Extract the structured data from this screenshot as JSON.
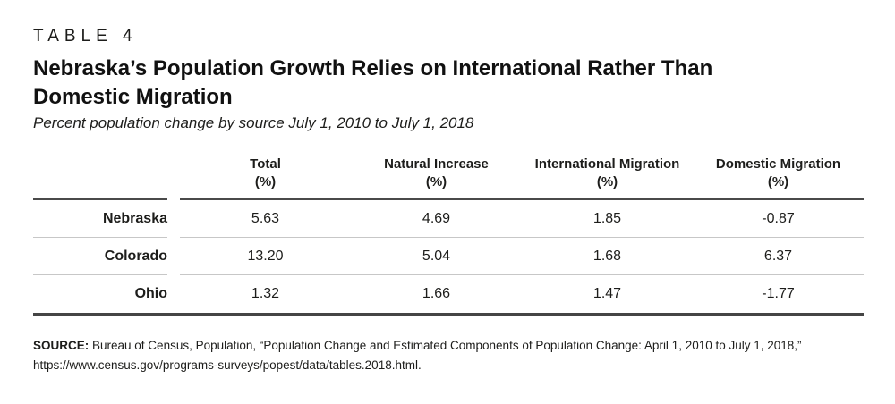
{
  "table_label": "TABLE 4",
  "title": {
    "line1": "Nebraska’s Population Growth Relies on International Rather Than",
    "line2": "Domestic Migration"
  },
  "subtitle": "Percent population change by source July 1, 2010 to July 1, 2018",
  "table": {
    "columns": [
      {
        "label": "Total",
        "unit": "(%)"
      },
      {
        "label": "Natural Increase",
        "unit": "(%)"
      },
      {
        "label": "International Migration",
        "unit": "(%)"
      },
      {
        "label": "Domestic Migration",
        "unit": "(%)"
      }
    ],
    "rows": [
      {
        "label": "Nebraska",
        "values": [
          "5.63",
          "4.69",
          "1.85",
          "-0.87"
        ]
      },
      {
        "label": "Colorado",
        "values": [
          "13.20",
          "5.04",
          "1.68",
          "6.37"
        ]
      },
      {
        "label": "Ohio",
        "values": [
          "1.32",
          "1.66",
          "1.47",
          "-1.77"
        ]
      }
    ]
  },
  "source": {
    "label": "SOURCE:",
    "text": " Bureau of Census, Population, “Population Change and Estimated Components of Population Change: April 1, 2010 to July 1, 2018,” https://www.census.gov/programs-surveys/popest/data/tables.2018.html."
  },
  "colors": {
    "text": "#1d1d1b",
    "rule_dark": "#454545",
    "rule_light": "#c7c7c7",
    "background": "#ffffff"
  },
  "chart_data": {
    "type": "table",
    "title": "Nebraska’s Population Growth Relies on International Rather Than Domestic Migration",
    "subtitle": "Percent population change by source July 1, 2010 to July 1, 2018",
    "columns": [
      "Total (%)",
      "Natural Increase (%)",
      "International Migration (%)",
      "Domestic Migration (%)"
    ],
    "rows": [
      {
        "label": "Nebraska",
        "values": [
          5.63,
          4.69,
          1.85,
          -0.87
        ]
      },
      {
        "label": "Colorado",
        "values": [
          13.2,
          5.04,
          1.68,
          6.37
        ]
      },
      {
        "label": "Ohio",
        "values": [
          1.32,
          1.66,
          1.47,
          -1.77
        ]
      }
    ]
  }
}
